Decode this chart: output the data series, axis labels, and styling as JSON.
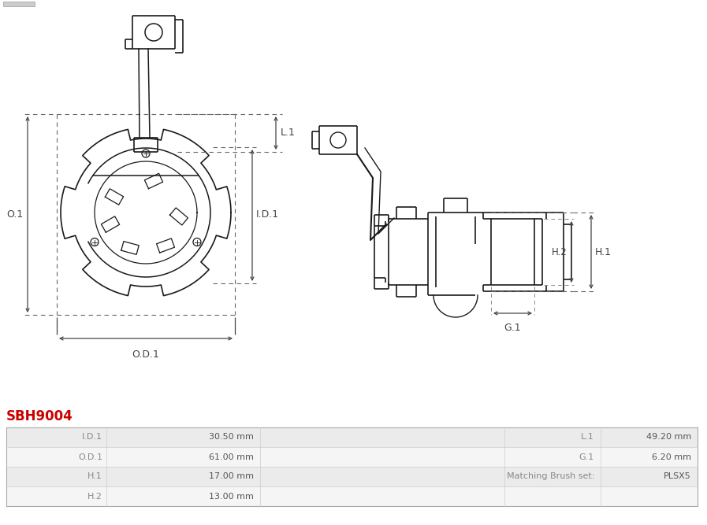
{
  "title": "SBH9004",
  "title_color": "#cc0000",
  "bg_color": "#ffffff",
  "table_data": [
    [
      "I.D.1",
      "30.50 mm",
      "L.1",
      "49.20 mm"
    ],
    [
      "O.D.1",
      "61.00 mm",
      "G.1",
      "6.20 mm"
    ],
    [
      "H.1",
      "17.00 mm",
      "Matching Brush set:",
      "PLSX5"
    ],
    [
      "H.2",
      "13.00 mm",
      "",
      ""
    ]
  ],
  "dim_color": "#444444",
  "line_color": "#1a1a1a",
  "dashed_color": "#555555",
  "table_row_colors": [
    "#ebebeb",
    "#f5f5f5",
    "#ebebeb",
    "#f5f5f5"
  ],
  "table_border_color": "#aaaaaa",
  "table_divider_color": "#cccccc",
  "label_color": "#888888",
  "value_color": "#555555"
}
